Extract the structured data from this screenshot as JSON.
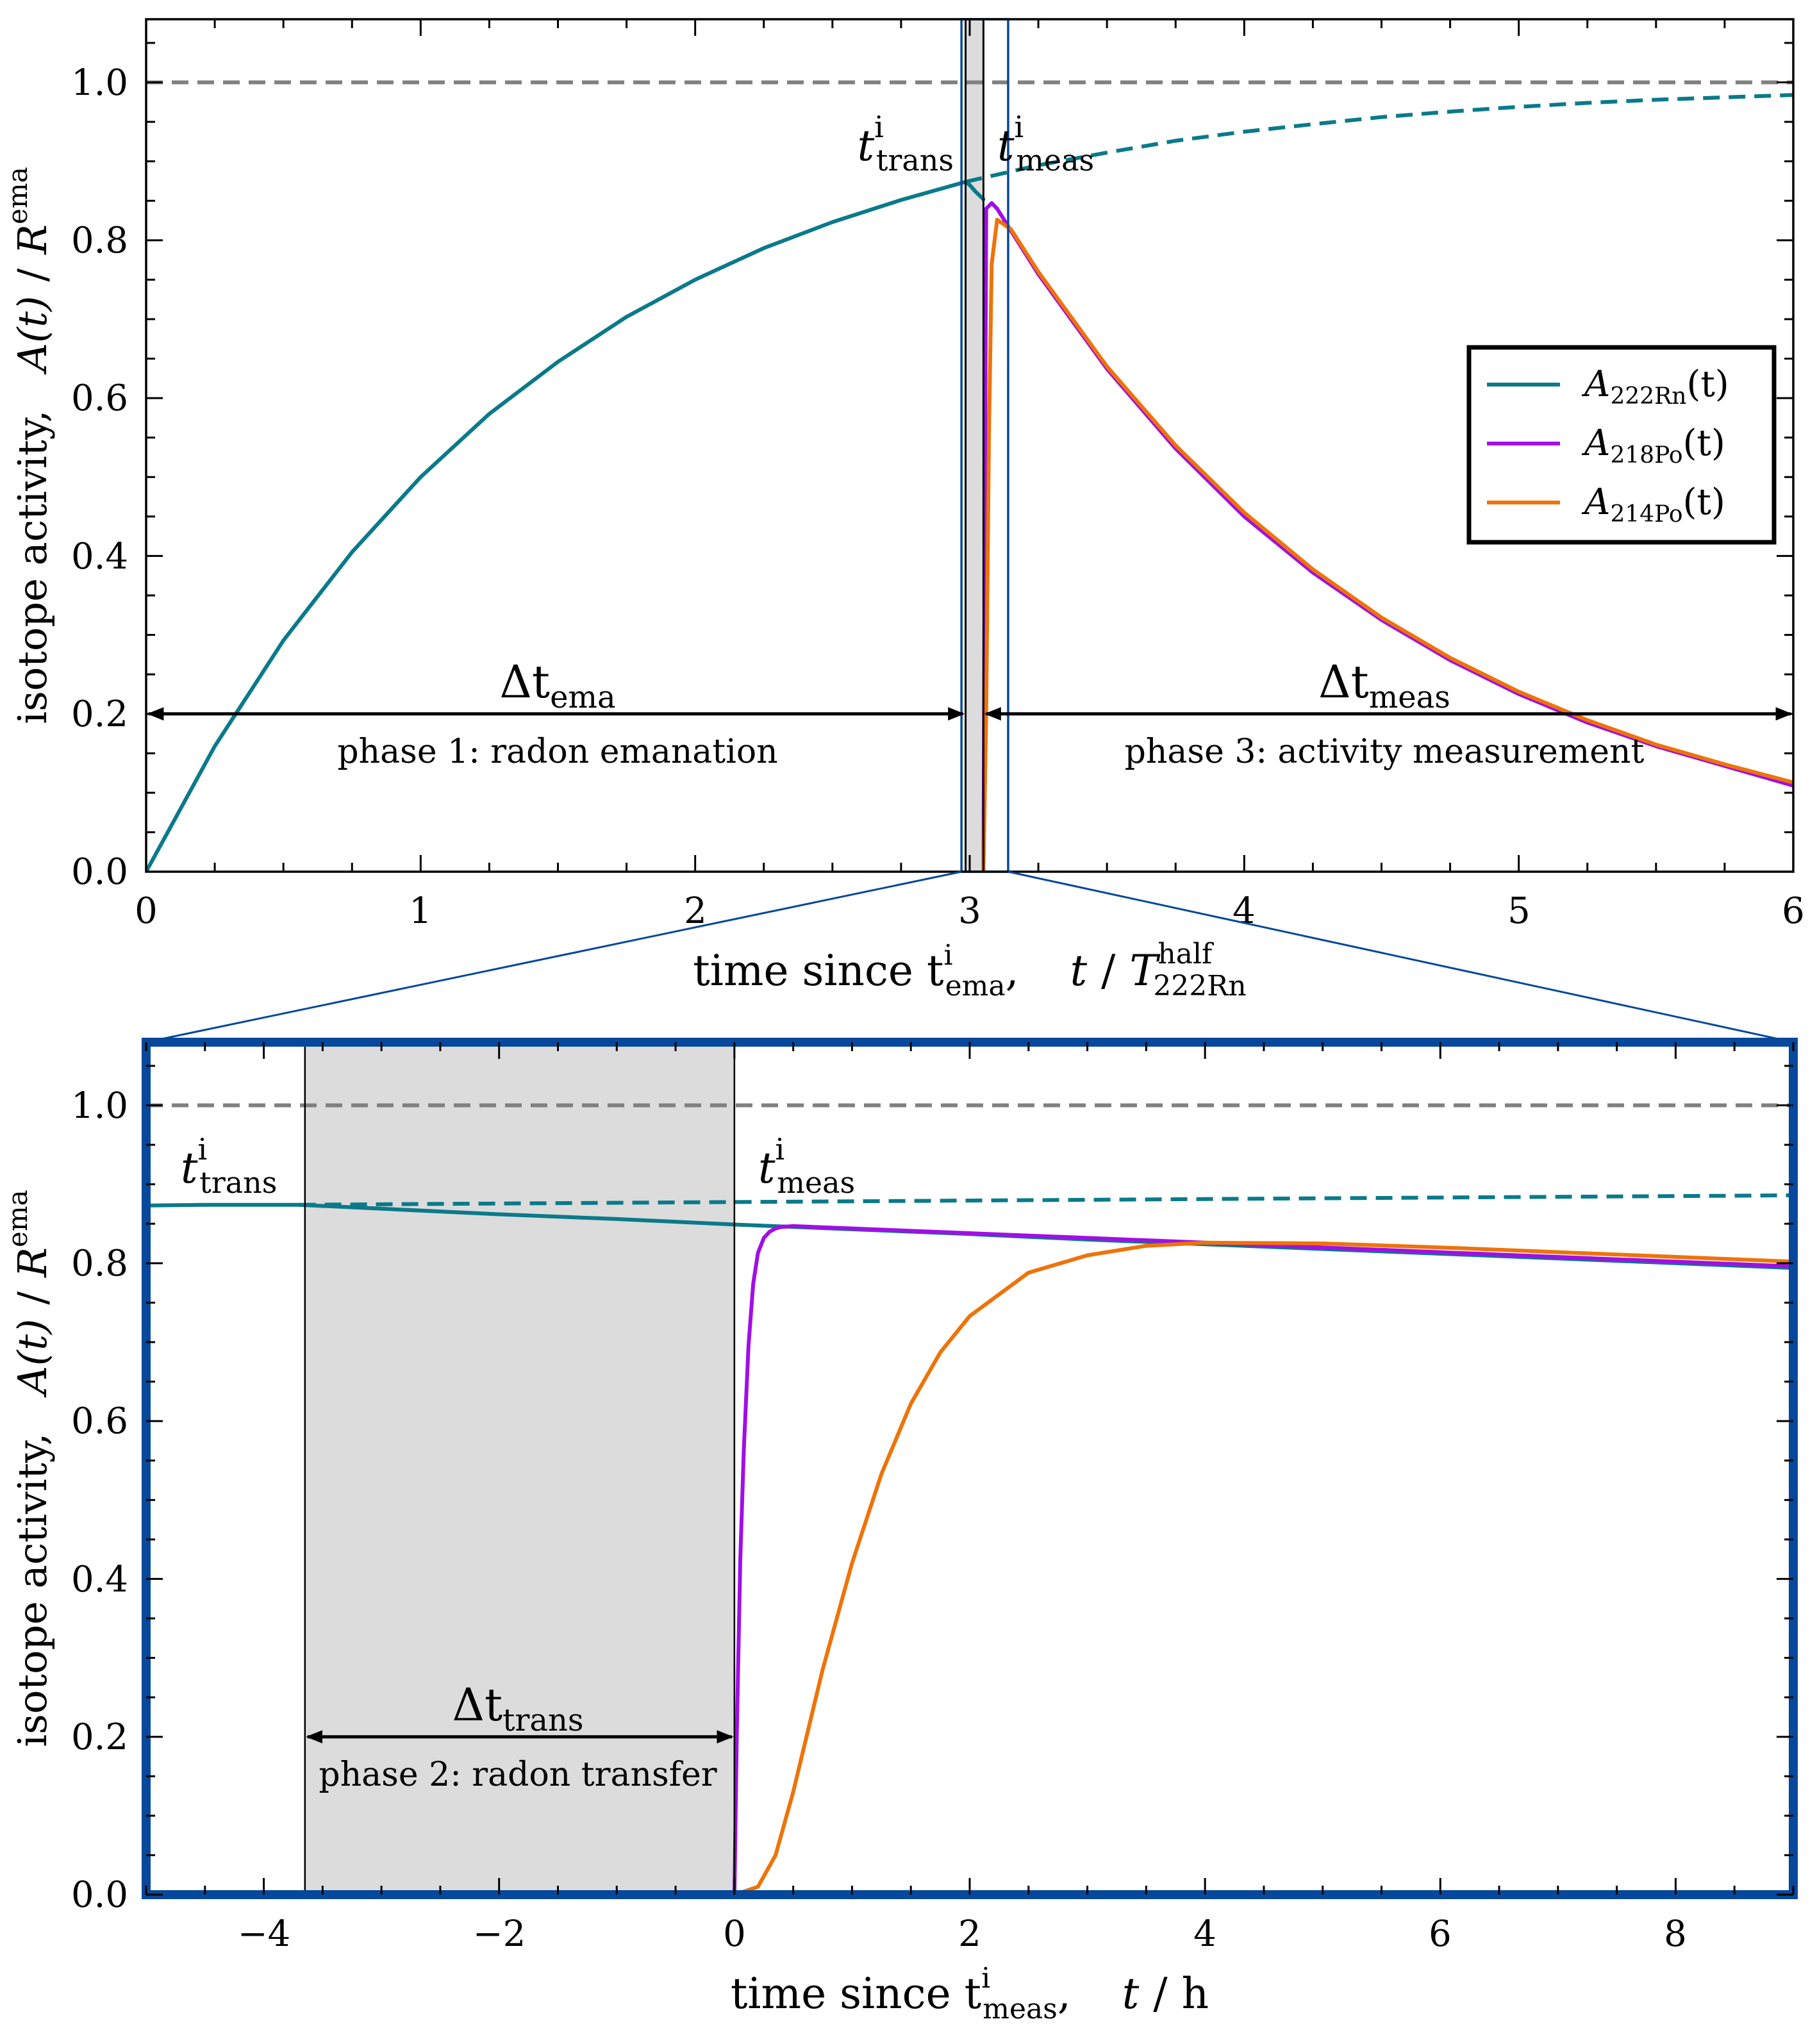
{
  "colors": {
    "rn222": "#0a7a8a",
    "po218": "#a10ee6",
    "po214": "#ee7309",
    "reference": "#808080",
    "zoom_frame": "#06489b",
    "transfer_shade": "#dcdcdc"
  },
  "chart_data": [
    {
      "type": "line",
      "x": [
        0,
        0.25,
        0.5,
        0.75,
        1,
        1.25,
        1.5,
        1.75,
        2,
        2.25,
        2.5,
        2.75,
        2.985
      ],
      "series": [
        {
          "name": "A_222Rn(t)",
          "color": "#0a7a8a",
          "x": [
            0,
            0.25,
            0.5,
            0.75,
            1,
            1.25,
            1.5,
            1.75,
            2,
            2.25,
            2.5,
            2.75,
            2.985
          ],
          "values": [
            0.0,
            0.159,
            0.293,
            0.405,
            0.5,
            0.58,
            0.646,
            0.703,
            0.75,
            0.79,
            0.823,
            0.851,
            0.874
          ]
        },
        {
          "name": "A_222Rn(t)",
          "color": "#0a7a8a",
          "x": [
            2.985,
            3.0,
            3.02,
            3.05
          ],
          "values": [
            0.874,
            0.87,
            0.862,
            0.852
          ]
        },
        {
          "name": "A_218Po(t)",
          "color": "#a10ee6",
          "x": [
            3.05,
            3.06,
            3.08,
            3.1,
            3.15,
            3.25,
            3.5,
            3.75,
            4.0,
            4.25,
            4.5,
            4.75,
            5.0,
            5.25,
            5.5,
            5.75,
            6.0
          ],
          "values": [
            0.0,
            0.84,
            0.847,
            0.84,
            0.812,
            0.757,
            0.637,
            0.536,
            0.45,
            0.379,
            0.319,
            0.268,
            0.225,
            0.189,
            0.159,
            0.134,
            0.109
          ]
        },
        {
          "name": "A_214Po(t)",
          "color": "#ee7309",
          "x": [
            3.05,
            3.06,
            3.07,
            3.08,
            3.1,
            3.15,
            3.25,
            3.5,
            3.75,
            4.0,
            4.25,
            4.5,
            4.75,
            5.0,
            5.25,
            5.5,
            5.75,
            6.0
          ],
          "values": [
            0.0,
            0.2,
            0.55,
            0.77,
            0.826,
            0.814,
            0.76,
            0.64,
            0.54,
            0.455,
            0.383,
            0.322,
            0.271,
            0.228,
            0.192,
            0.161,
            0.136,
            0.113
          ]
        },
        {
          "name": "A_222Rn(t)",
          "color": "#0a7a8a",
          "dashed": true,
          "x": [
            2.985,
            3.25,
            3.5,
            3.75,
            4.0,
            4.25,
            4.5,
            4.75,
            5.0,
            5.25,
            5.5,
            5.75,
            6.0
          ],
          "values": [
            0.874,
            0.895,
            0.911,
            0.926,
            0.9375,
            0.947,
            0.956,
            0.963,
            0.969,
            0.974,
            0.978,
            0.981,
            0.984
          ]
        },
        {
          "name": "1",
          "color": "#808080",
          "dashed": true,
          "x": [
            0,
            6
          ],
          "values": [
            1.0,
            1.0
          ]
        }
      ],
      "xlim": [
        0,
        6
      ],
      "ylim": [
        0,
        1.08
      ],
      "xticks": [
        0,
        1,
        2,
        3,
        4,
        5,
        6
      ],
      "yticks": [
        0.0,
        0.2,
        0.4,
        0.6,
        0.8,
        1.0
      ],
      "xtick_labels": [
        "0",
        "1",
        "2",
        "3",
        "4",
        "5",
        "6"
      ],
      "ytick_labels": [
        "0.0",
        "0.2",
        "0.4",
        "0.6",
        "0.8",
        "1.0"
      ],
      "xlabel": {
        "main": "time since t",
        "sup": "i",
        "sub": "ema",
        "sep": ",",
        "var": "t",
        "slash": "/",
        "unit_main": "T",
        "unit_sup": "half",
        "unit_sub": "222Rn"
      },
      "ylabel": {
        "main": "isotope activity,",
        "expr": "A(t)",
        "slash": "/",
        "unit_main": "R",
        "unit_sup": "ema"
      },
      "legend": {
        "placement": "center-right",
        "entries": [
          {
            "main": "A",
            "sub": "222Rn",
            "suffix": "(t)",
            "color": "#0a7a8a"
          },
          {
            "main": "A",
            "sub": "218Po",
            "suffix": "(t)",
            "color": "#a10ee6"
          },
          {
            "main": "A",
            "sub": "214Po",
            "suffix": "(t)",
            "color": "#ee7309"
          }
        ]
      },
      "annotations": {
        "t_trans": {
          "main": "t",
          "sup": "i",
          "sub": "trans",
          "x": 2.985
        },
        "t_meas": {
          "main": "t",
          "sup": "i",
          "sub": "meas",
          "x": 3.05
        },
        "dt_ema": {
          "main": "Δt",
          "sub": "ema",
          "from": 0,
          "to": 2.985,
          "y": 0.2
        },
        "dt_meas": {
          "main": "Δt",
          "sub": "meas",
          "from": 3.05,
          "to": 6.0,
          "y": 0.2
        },
        "phase1": "phase 1: radon emanation",
        "phase3": "phase 3: activity measurement"
      },
      "transfer_span": [
        2.985,
        3.05
      ],
      "zoom_region": {
        "x": [
          2.97,
          3.14
        ],
        "y": [
          0,
          1.08
        ]
      },
      "grid": false
    },
    {
      "type": "line",
      "series": [
        {
          "name": "A_222Rn(t)",
          "color": "#0a7a8a",
          "x": [
            -5,
            -4.5,
            -4,
            -3.7,
            -3,
            -2,
            -1,
            0,
            1,
            2,
            3,
            4,
            5,
            6,
            7,
            8,
            9
          ],
          "values": [
            0.873,
            0.874,
            0.874,
            0.874,
            0.869,
            0.862,
            0.856,
            0.849,
            0.843,
            0.837,
            0.83,
            0.824,
            0.818,
            0.812,
            0.806,
            0.8,
            0.794
          ]
        },
        {
          "name": "A_218Po(t)",
          "color": "#a10ee6",
          "x": [
            0,
            0.02,
            0.05,
            0.08,
            0.12,
            0.16,
            0.2,
            0.25,
            0.3,
            0.35,
            0.4,
            0.5,
            1,
            2,
            3,
            4,
            5,
            6,
            7,
            8,
            9
          ],
          "values": [
            0.0,
            0.2,
            0.423,
            0.563,
            0.696,
            0.774,
            0.813,
            0.832,
            0.84,
            0.844,
            0.846,
            0.847,
            0.844,
            0.838,
            0.832,
            0.826,
            0.82,
            0.814,
            0.808,
            0.802,
            0.796
          ]
        },
        {
          "name": "A_214Po(t)",
          "color": "#ee7309",
          "x": [
            0,
            0.2,
            0.35,
            0.5,
            0.75,
            1.0,
            1.25,
            1.5,
            1.75,
            2.0,
            2.5,
            3.0,
            3.5,
            4.0,
            5,
            6,
            7,
            8,
            9
          ],
          "values": [
            0.0,
            0.01,
            0.05,
            0.13,
            0.285,
            0.42,
            0.533,
            0.622,
            0.687,
            0.733,
            0.788,
            0.81,
            0.822,
            0.826,
            0.825,
            0.82,
            0.814,
            0.808,
            0.802
          ]
        },
        {
          "name": "A_222Rn(t)",
          "color": "#0a7a8a",
          "dashed": true,
          "x": [
            -3.7,
            9
          ],
          "values": [
            0.874,
            0.886
          ]
        },
        {
          "name": "1",
          "color": "#808080",
          "dashed": true,
          "x": [
            -5,
            9
          ],
          "values": [
            1.0,
            1.0
          ]
        }
      ],
      "xlim": [
        -5,
        9
      ],
      "ylim": [
        0,
        1.08
      ],
      "xticks": [
        -4,
        -2,
        0,
        2,
        4,
        6,
        8
      ],
      "yticks": [
        0.0,
        0.2,
        0.4,
        0.6,
        0.8,
        1.0
      ],
      "xtick_labels": [
        "−4",
        "−2",
        "0",
        "2",
        "4",
        "6",
        "8"
      ],
      "ytick_labels": [
        "0.0",
        "0.2",
        "0.4",
        "0.6",
        "0.8",
        "1.0"
      ],
      "xlabel": {
        "main": "time since t",
        "sup": "i",
        "sub": "meas",
        "sep": ",",
        "var": "t",
        "slash": "/",
        "unit": "h"
      },
      "ylabel": {
        "main": "isotope activity,",
        "expr": "A(t)",
        "slash": "/",
        "unit_main": "R",
        "unit_sup": "ema"
      },
      "annotations": {
        "t_trans": {
          "main": "t",
          "sup": "i",
          "sub": "trans",
          "x": -3.65
        },
        "t_meas": {
          "main": "t",
          "sup": "i",
          "sub": "meas",
          "x": 0
        },
        "dt_trans": {
          "main": "Δt",
          "sub": "trans",
          "from": -3.65,
          "to": 0,
          "y": 0.2
        },
        "phase2": "phase 2: radon transfer"
      },
      "transfer_span": [
        -3.65,
        0
      ],
      "grid": false
    }
  ]
}
